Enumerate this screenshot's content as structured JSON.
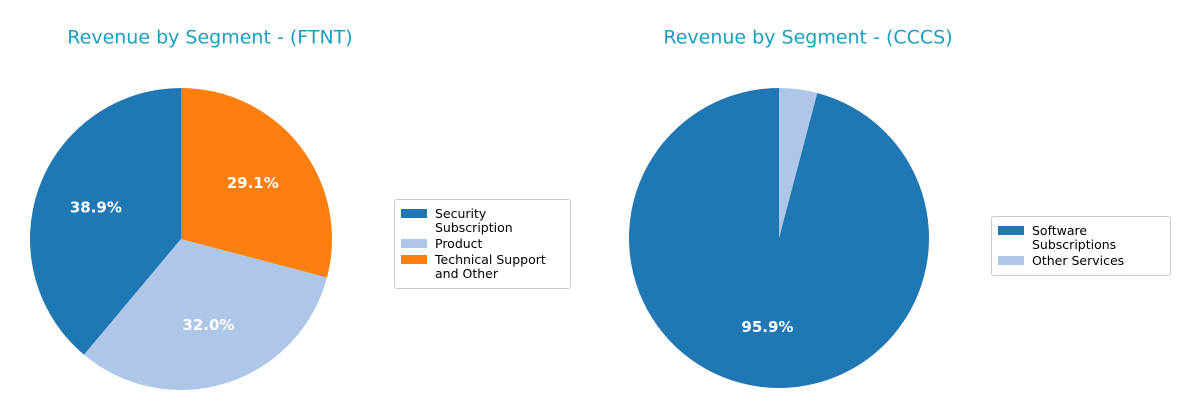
{
  "chart_data": [
    {
      "type": "pie",
      "title": "Revenue by Segment - (FTNT)",
      "categories": [
        "Security Subscription",
        "Product",
        "Technical Support and Other"
      ],
      "values": [
        38.9,
        32.0,
        29.1
      ],
      "value_labels": [
        "38.9%",
        "32.0%",
        "29.1%"
      ],
      "colors": [
        "#1f77b4",
        "#aec7e8",
        "#ff7f0e"
      ],
      "legend": "right"
    },
    {
      "type": "pie",
      "title": "Revenue by Segment - (CCCS)",
      "categories": [
        "Software Subscriptions",
        "Other Services"
      ],
      "values": [
        95.9,
        4.1
      ],
      "value_labels": [
        "95.9%",
        null
      ],
      "colors": [
        "#1f77b4",
        "#aec7e8"
      ],
      "legend": "right"
    }
  ]
}
